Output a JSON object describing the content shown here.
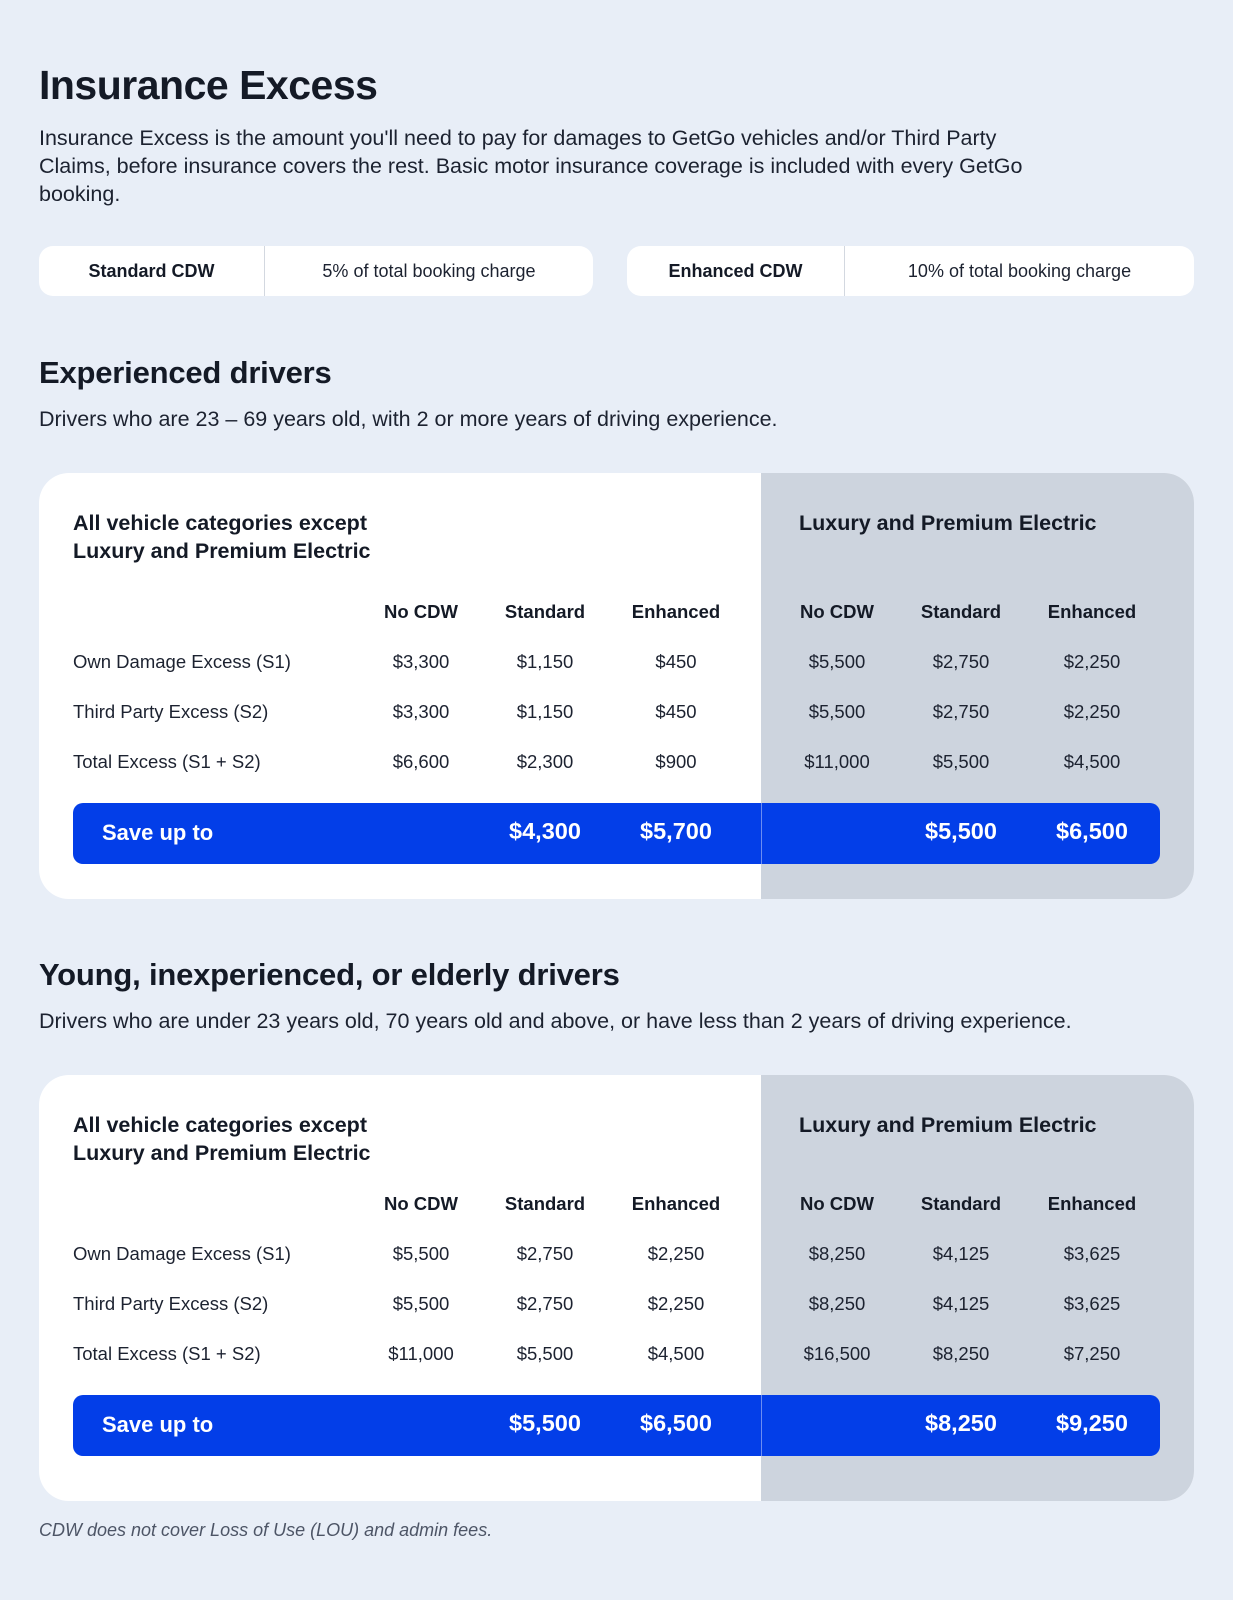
{
  "page": {
    "title": "Insurance Excess",
    "intro": "Insurance Excess is the amount you'll need to pay for damages to GetGo vehicles and/or Third Party Claims, before insurance covers the rest. Basic motor insurance coverage is included with every GetGo booking."
  },
  "cdw_options": [
    {
      "name": "Standard CDW",
      "value": "5% of total booking charge"
    },
    {
      "name": "Enhanced CDW",
      "value": "10% of total booking charge"
    }
  ],
  "sections": [
    {
      "title": "Experienced drivers",
      "description": "Drivers who are 23 – 69 years old, with 2 or more years of driving experience.",
      "standard_group": {
        "title_line1": "All vehicle categories except",
        "title_line2": "Luxury and Premium Electric",
        "columns": [
          "No CDW",
          "Standard",
          "Enhanced"
        ],
        "rows": [
          [
            "$3,300",
            "$1,150",
            "$450"
          ],
          [
            "$3,300",
            "$1,150",
            "$450"
          ],
          [
            "$6,600",
            "$2,300",
            "$900"
          ]
        ],
        "save": [
          "$4,300",
          "$5,700"
        ]
      },
      "luxury_group": {
        "title": "Luxury and Premium Electric",
        "columns": [
          "No CDW",
          "Standard",
          "Enhanced"
        ],
        "rows": [
          [
            "$5,500",
            "$2,750",
            "$2,250"
          ],
          [
            "$5,500",
            "$2,750",
            "$2,250"
          ],
          [
            "$11,000",
            "$5,500",
            "$4,500"
          ]
        ],
        "save": [
          "$5,500",
          "$6,500"
        ]
      },
      "row_labels": [
        "Own Damage Excess (S1)",
        "Third Party Excess (S2)",
        "Total Excess (S1 + S2)"
      ],
      "save_label": "Save up to"
    },
    {
      "title": "Young, inexperienced, or elderly drivers",
      "description": "Drivers who are under 23 years old, 70 years old and above, or have less than 2 years of driving experience.",
      "standard_group": {
        "title_line1": "All vehicle categories except",
        "title_line2": "Luxury and Premium Electric",
        "columns": [
          "No CDW",
          "Standard",
          "Enhanced"
        ],
        "rows": [
          [
            "$5,500",
            "$2,750",
            "$2,250"
          ],
          [
            "$5,500",
            "$2,750",
            "$2,250"
          ],
          [
            "$11,000",
            "$5,500",
            "$4,500"
          ]
        ],
        "save": [
          "$5,500",
          "$6,500"
        ]
      },
      "luxury_group": {
        "title": "Luxury and Premium Electric",
        "columns": [
          "No CDW",
          "Standard",
          "Enhanced"
        ],
        "rows": [
          [
            "$8,250",
            "$4,125",
            "$3,625"
          ],
          [
            "$8,250",
            "$4,125",
            "$3,625"
          ],
          [
            "$16,500",
            "$8,250",
            "$7,250"
          ]
        ],
        "save": [
          "$8,250",
          "$9,250"
        ]
      },
      "row_labels": [
        "Own Damage Excess (S1)",
        "Third Party Excess (S2)",
        "Total Excess (S1 + S2)"
      ],
      "save_label": "Save up to"
    }
  ],
  "footnote": "CDW does not cover Loss of Use (LOU) and admin fees.",
  "colors": {
    "background": "#e8eef7",
    "card": "#ffffff",
    "luxury_panel": "#cdd4de",
    "save_bar": "#033ee8"
  }
}
